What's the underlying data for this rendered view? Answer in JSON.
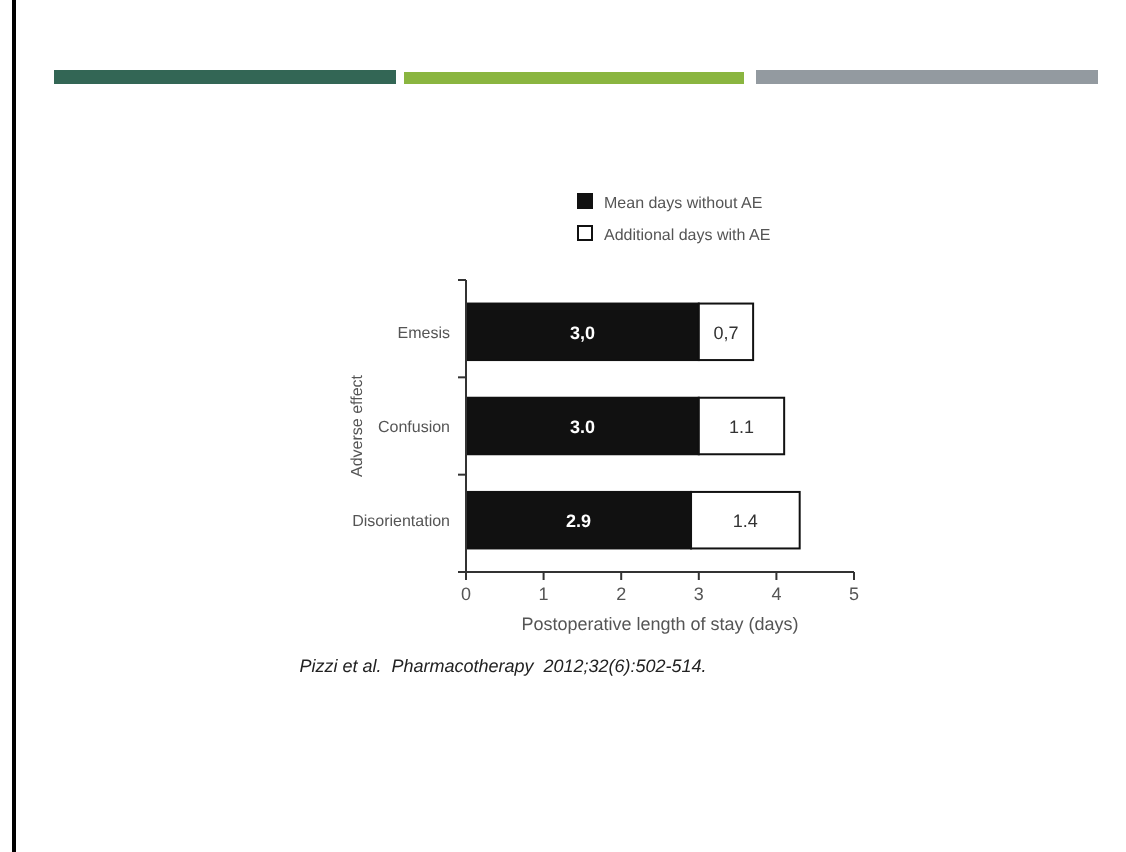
{
  "chart_data": {
    "type": "bar",
    "orientation": "horizontal",
    "stacked": true,
    "ylabel": "Adverse effect",
    "xlabel": "Postoperative length of stay (days)",
    "categories": [
      "Emesis",
      "Confusion",
      "Disorientation"
    ],
    "series": [
      {
        "name": "Mean days without AE",
        "color": "#111111",
        "values": [
          3.0,
          3.0,
          2.9
        ],
        "value_labels": [
          "3,0",
          "3.0",
          "2.9"
        ]
      },
      {
        "name": "Additional days with AE",
        "color": "#ffffff",
        "values": [
          0.7,
          1.1,
          1.4
        ],
        "value_labels": [
          "0,7",
          "1.1",
          "1.4"
        ]
      }
    ],
    "xlim": [
      0,
      5
    ],
    "xticks": [
      0,
      1,
      2,
      3,
      4,
      5
    ],
    "grid": false,
    "legend": "top",
    "annotations": [
      "Pizzi et al.  Pharmacotherapy  2012;32(6):502-514."
    ]
  }
}
